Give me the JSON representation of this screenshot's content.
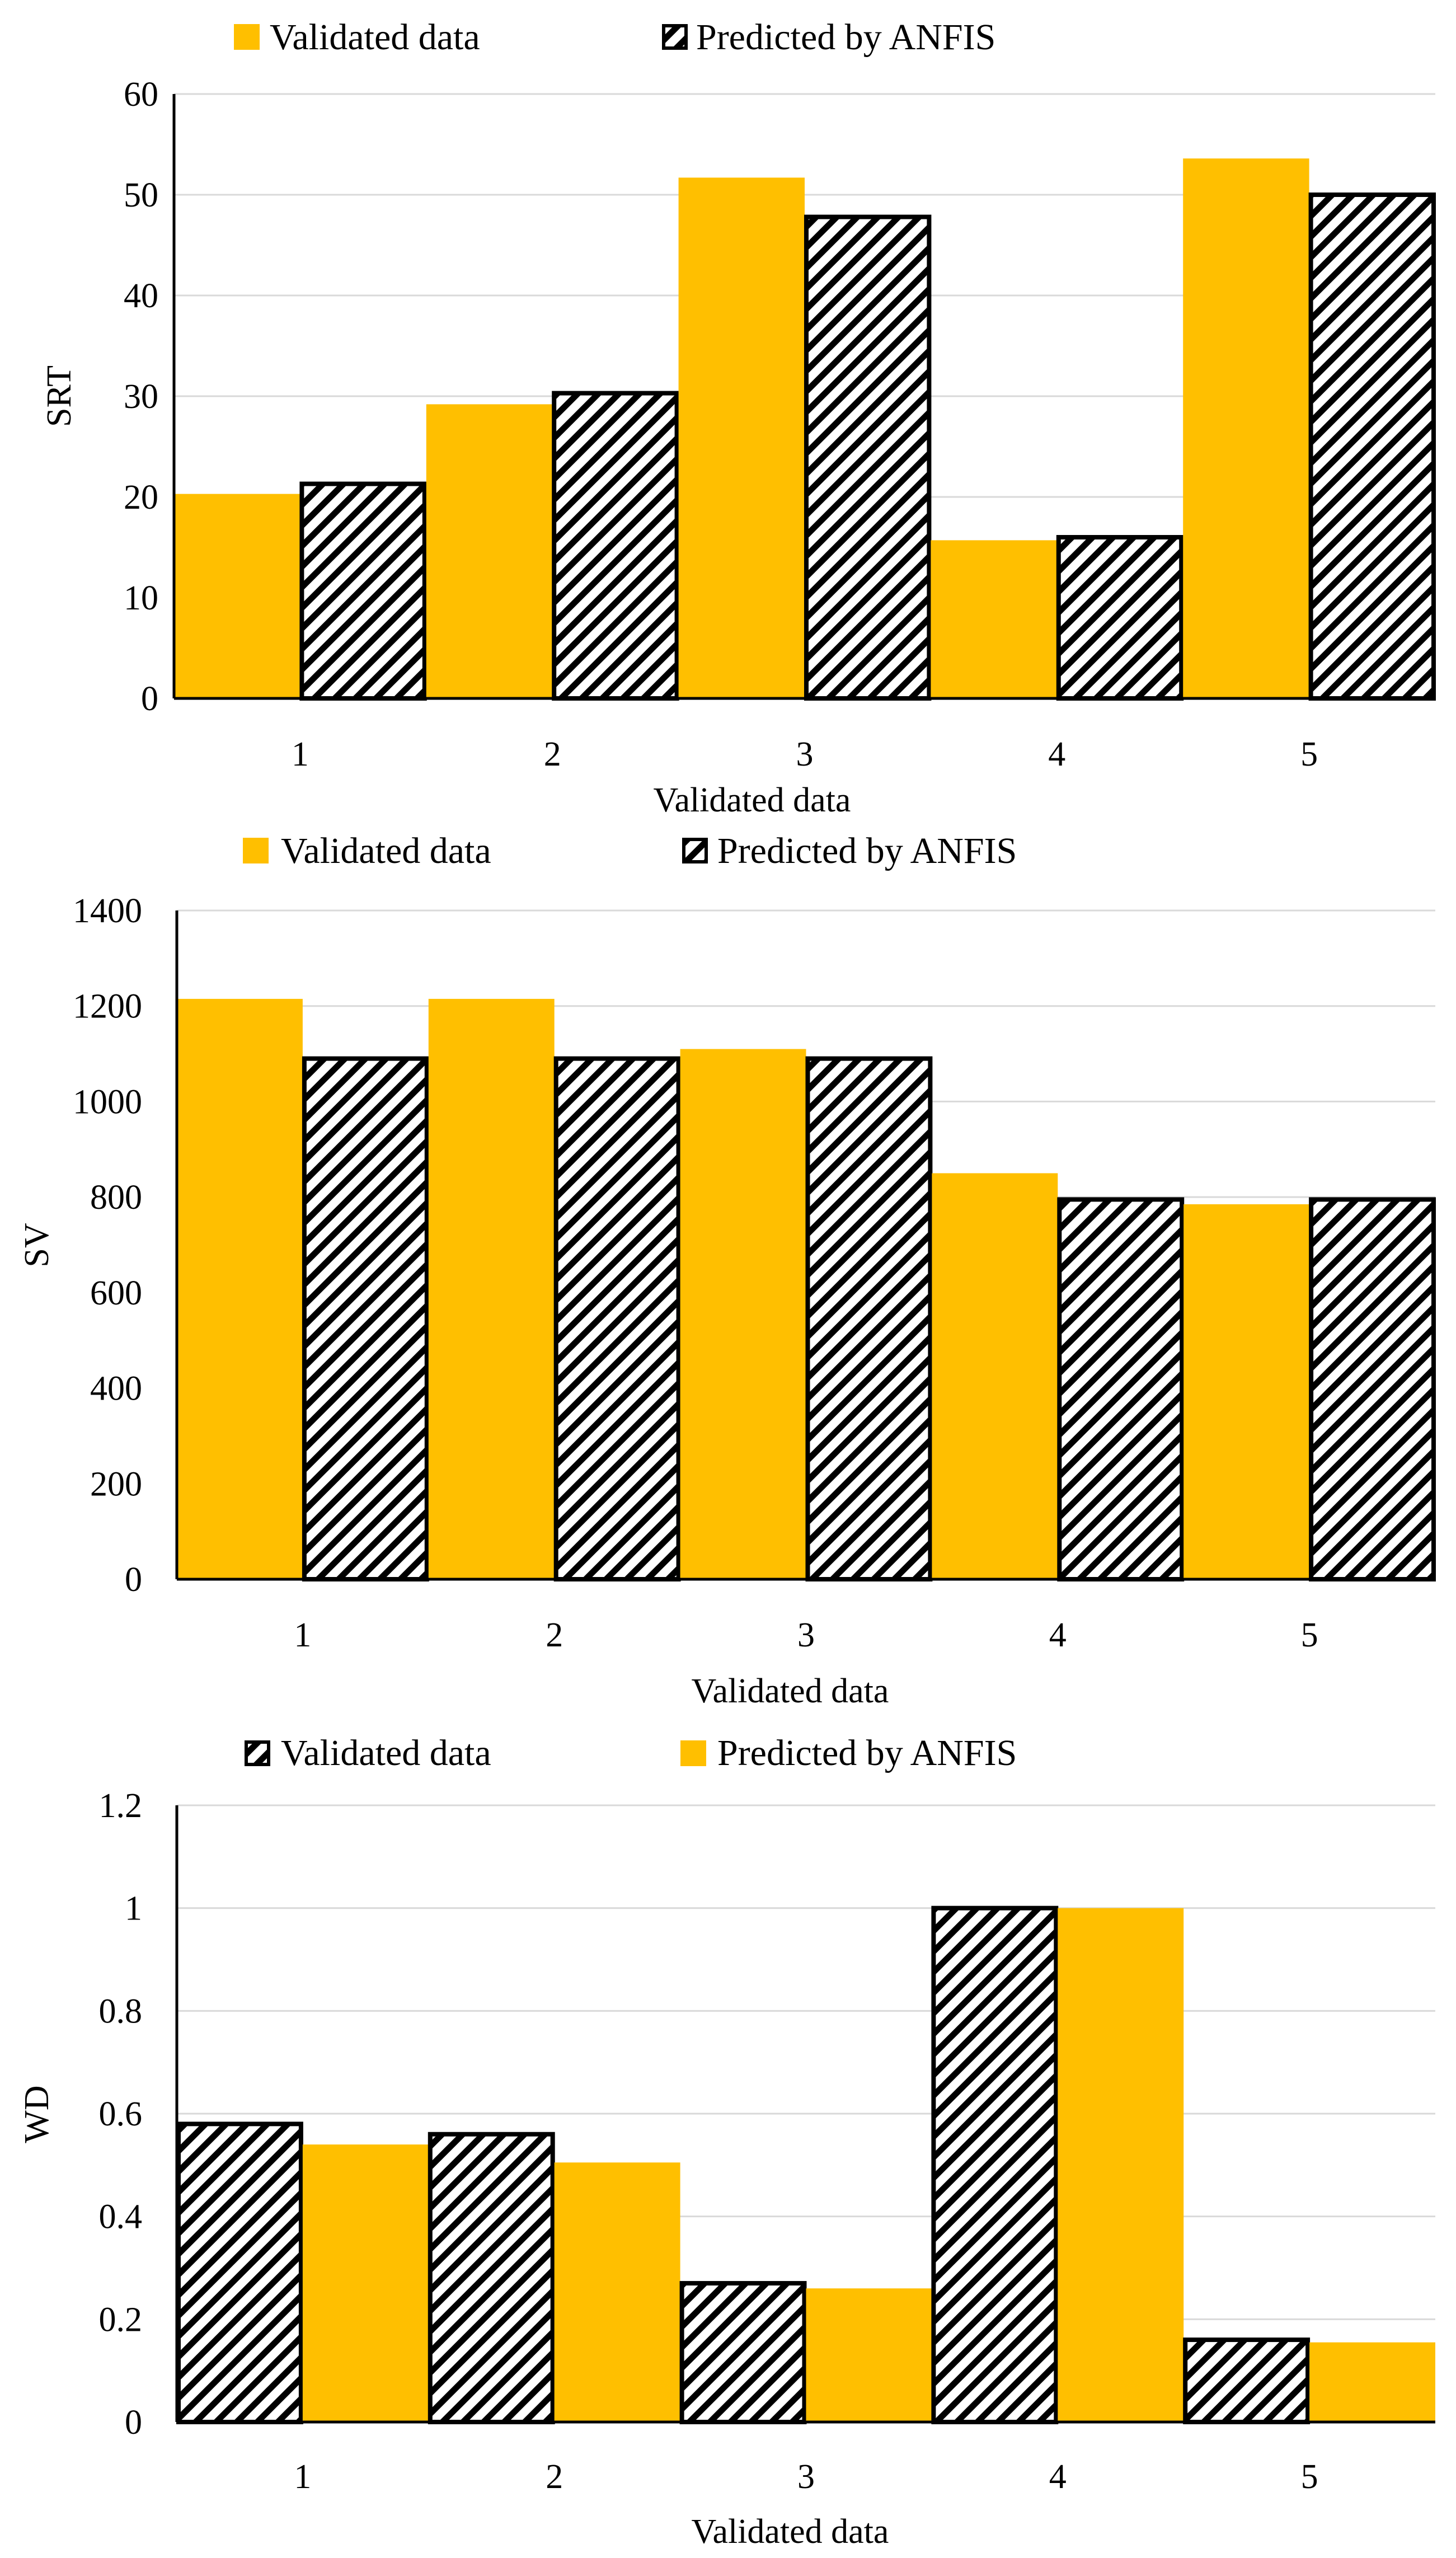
{
  "chart_data": [
    {
      "type": "bar",
      "categories": [
        "1",
        "2",
        "3",
        "4",
        "5"
      ],
      "series": [
        {
          "name": "Validated data",
          "style": "solid",
          "values": [
            20.3,
            29.2,
            51.7,
            15.7,
            53.6
          ]
        },
        {
          "name": "Predicted by ANFIS",
          "style": "hatched",
          "values": [
            21.3,
            30.3,
            47.8,
            16.0,
            50.0
          ]
        }
      ],
      "legend": [
        "Validated data",
        "Predicted by ANFIS"
      ],
      "title": "",
      "xlabel": "Validated data",
      "ylabel": "SRT",
      "ylim": [
        0,
        60
      ],
      "yticks": [
        "0",
        "10",
        "20",
        "30",
        "40",
        "50",
        "60"
      ],
      "grid": true,
      "legend_position": "top"
    },
    {
      "type": "bar",
      "categories": [
        "1",
        "2",
        "3",
        "4",
        "5"
      ],
      "series": [
        {
          "name": "Validated data",
          "style": "solid",
          "values": [
            1215,
            1215,
            1110,
            850,
            785
          ]
        },
        {
          "name": "Predicted by ANFIS",
          "style": "hatched",
          "values": [
            1090,
            1090,
            1090,
            795,
            795
          ]
        }
      ],
      "legend": [
        "Validated data",
        "Predicted by ANFIS"
      ],
      "title": "",
      "xlabel": "Validated data",
      "ylabel": "SV",
      "ylim": [
        0,
        1400
      ],
      "yticks": [
        "0",
        "200",
        "400",
        "600",
        "800",
        "1000",
        "1200",
        "1400"
      ],
      "grid": true,
      "legend_position": "top"
    },
    {
      "type": "bar",
      "categories": [
        "1",
        "2",
        "3",
        "4",
        "5"
      ],
      "series": [
        {
          "name": "Validated data",
          "style": "hatched",
          "values": [
            0.58,
            0.56,
            0.27,
            1.0,
            0.16
          ]
        },
        {
          "name": "Predicted by ANFIS",
          "style": "solid",
          "values": [
            0.54,
            0.505,
            0.26,
            1.0,
            0.155
          ]
        }
      ],
      "legend": [
        "Validated data",
        "Predicted by ANFIS"
      ],
      "title": "",
      "xlabel": "Validated data",
      "ylabel": "WD",
      "ylim": [
        0,
        1.2
      ],
      "yticks": [
        "0",
        "0.2",
        "0.4",
        "0.6",
        "0.8",
        "1",
        "1.2"
      ],
      "grid": true,
      "legend_position": "top"
    }
  ],
  "colors": {
    "solid": "#FFBF00",
    "hatch_stroke": "#000000",
    "grid": "#D9D9D9",
    "axis": "#000000"
  }
}
